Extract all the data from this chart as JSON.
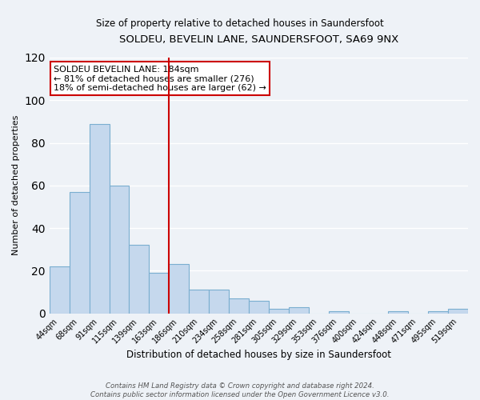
{
  "title": "SOLDEU, BEVELIN LANE, SAUNDERSFOOT, SA69 9NX",
  "subtitle": "Size of property relative to detached houses in Saundersfoot",
  "xlabel": "Distribution of detached houses by size in Saundersfoot",
  "ylabel": "Number of detached properties",
  "bin_labels": [
    "44sqm",
    "68sqm",
    "91sqm",
    "115sqm",
    "139sqm",
    "163sqm",
    "186sqm",
    "210sqm",
    "234sqm",
    "258sqm",
    "281sqm",
    "305sqm",
    "329sqm",
    "353sqm",
    "376sqm",
    "400sqm",
    "424sqm",
    "448sqm",
    "471sqm",
    "495sqm",
    "519sqm"
  ],
  "bar_values": [
    22,
    57,
    89,
    60,
    32,
    19,
    23,
    11,
    11,
    7,
    6,
    2,
    3,
    0,
    1,
    0,
    0,
    1,
    0,
    1,
    2
  ],
  "bar_color": "#c5d8ed",
  "bar_edge_color": "#7aaed0",
  "vline_x": 5.5,
  "vline_color": "#cc0000",
  "ylim": [
    0,
    120
  ],
  "yticks": [
    0,
    20,
    40,
    60,
    80,
    100,
    120
  ],
  "annotation_text": "SOLDEU BEVELIN LANE: 184sqm\n← 81% of detached houses are smaller (276)\n18% of semi-detached houses are larger (62) →",
  "annotation_box_color": "#ffffff",
  "annotation_box_edge": "#cc0000",
  "background_color": "#eef2f7",
  "grid_color": "#ffffff",
  "footer_line1": "Contains HM Land Registry data © Crown copyright and database right 2024.",
  "footer_line2": "Contains public sector information licensed under the Open Government Licence v3.0."
}
